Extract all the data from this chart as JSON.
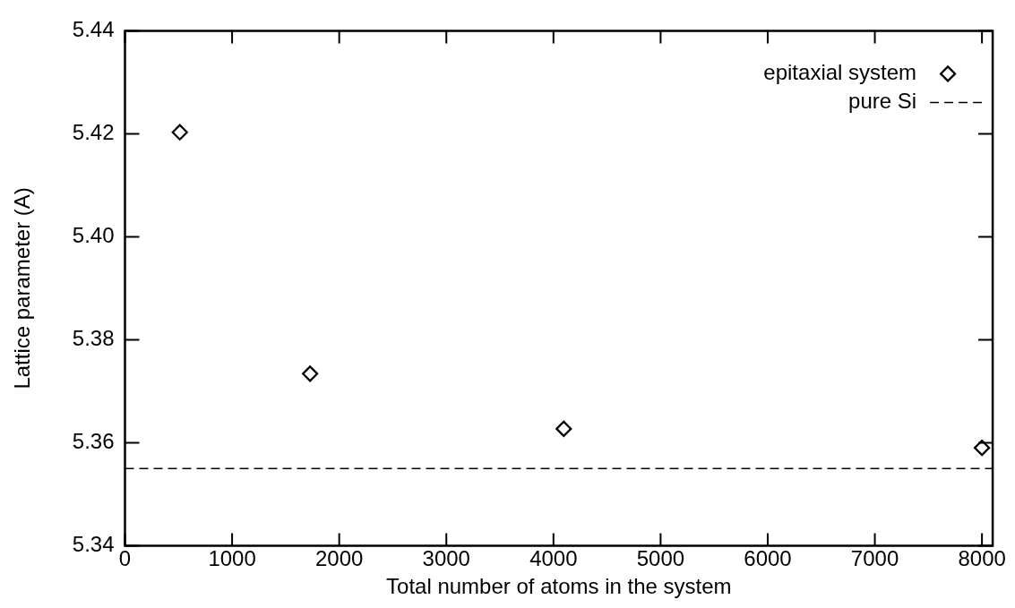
{
  "chart_data": {
    "type": "scatter",
    "xlabel": "Total number of atoms in the system",
    "ylabel": "Lattice parameter (A)",
    "xlim": [
      0,
      8100
    ],
    "xticks": [
      0,
      1000,
      2000,
      3000,
      4000,
      5000,
      6000,
      7000,
      8000
    ],
    "ylim": [
      5.34,
      5.44
    ],
    "yticks": [
      5.34,
      5.36,
      5.38,
      {
        "value": 5.4,
        "label": "5.40"
      },
      5.42,
      5.44
    ],
    "grid": false,
    "legend": "top right",
    "series": [
      {
        "name": "epitaxial system",
        "marker": "diamond",
        "color": "#000000",
        "x": [
          512,
          1728,
          4096,
          8000
        ],
        "values": [
          5.4203,
          5.3734,
          5.3627,
          5.359
        ]
      },
      {
        "name": "pure Si",
        "type": "line",
        "color": "#000000",
        "line_style": "dashed",
        "x": [
          0,
          8100
        ],
        "values": [
          5.355,
          5.355
        ]
      }
    ]
  }
}
